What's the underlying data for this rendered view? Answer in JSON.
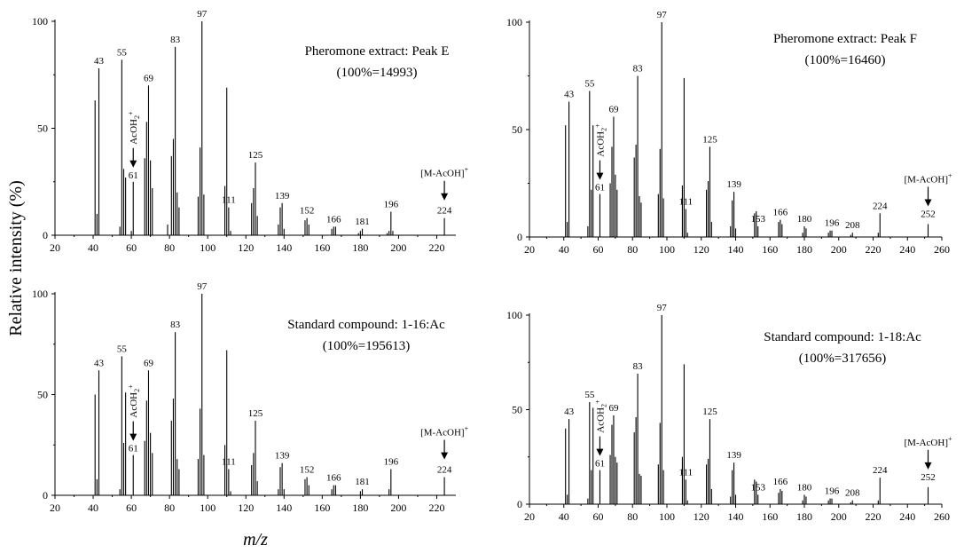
{
  "figure": {
    "ylabel": "Relative intensity (%)",
    "xlabel": "m/z"
  },
  "chart_data": [
    {
      "type": "bar",
      "title": "Pheromone extract: Peak E",
      "subtitle": "(100%=14993)",
      "xlim": [
        20,
        230
      ],
      "ylim": [
        0,
        100
      ],
      "xticks": [
        20,
        40,
        60,
        80,
        100,
        120,
        140,
        160,
        180,
        200,
        220
      ],
      "yticks": [
        0,
        50,
        100
      ],
      "x": [
        41,
        42,
        43,
        54,
        55,
        56,
        57,
        60,
        61,
        67,
        68,
        69,
        70,
        71,
        79,
        81,
        82,
        83,
        84,
        85,
        95,
        96,
        97,
        98,
        109,
        110,
        111,
        112,
        123,
        124,
        125,
        126,
        137,
        138,
        139,
        140,
        151,
        152,
        153,
        165,
        166,
        167,
        179,
        180,
        181,
        194,
        195,
        196,
        197,
        224
      ],
      "values": [
        63,
        10,
        78,
        4,
        82,
        31,
        27,
        2,
        25,
        36,
        53,
        70,
        35,
        22,
        5,
        37,
        45,
        88,
        20,
        13,
        18,
        41,
        100,
        19,
        23,
        69,
        13,
        2,
        15,
        22,
        34,
        9,
        5,
        13,
        15,
        3,
        7,
        8,
        5,
        3,
        4,
        4,
        1,
        2,
        3,
        1,
        2,
        11,
        2,
        8
      ],
      "peak_labels": [
        {
          "x": 43,
          "text": "43"
        },
        {
          "x": 55,
          "text": "55"
        },
        {
          "x": 69,
          "text": "69"
        },
        {
          "x": 83,
          "text": "83"
        },
        {
          "x": 97,
          "text": "97"
        },
        {
          "x": 111,
          "text": "111"
        },
        {
          "x": 125,
          "text": "125"
        },
        {
          "x": 139,
          "text": "139"
        },
        {
          "x": 152,
          "text": "152"
        },
        {
          "x": 166,
          "text": "166"
        },
        {
          "x": 181,
          "text": "181"
        },
        {
          "x": 196,
          "text": "196"
        },
        {
          "x": 224,
          "text": "224"
        }
      ],
      "arrows": [
        {
          "x": 61,
          "label": "AcOH2+",
          "value_label": "61"
        },
        {
          "x": 224,
          "label": "[M-AcOH]+",
          "value_label": ""
        }
      ]
    },
    {
      "type": "bar",
      "title": "Pheromone extract: Peak F",
      "subtitle": "(100%=16460)",
      "xlim": [
        20,
        260
      ],
      "ylim": [
        0,
        100
      ],
      "xticks": [
        20,
        40,
        60,
        80,
        100,
        120,
        140,
        160,
        180,
        200,
        220,
        240,
        260
      ],
      "yticks": [
        0,
        50,
        100
      ],
      "x": [
        41,
        42,
        43,
        54,
        55,
        56,
        57,
        61,
        67,
        68,
        69,
        70,
        71,
        81,
        82,
        83,
        84,
        85,
        95,
        96,
        97,
        98,
        109,
        110,
        111,
        112,
        123,
        124,
        125,
        126,
        137,
        138,
        139,
        140,
        151,
        152,
        153,
        165,
        166,
        167,
        179,
        180,
        181,
        194,
        195,
        196,
        207,
        208,
        223,
        224,
        252
      ],
      "values": [
        52,
        7,
        63,
        5,
        68,
        22,
        52,
        20,
        25,
        42,
        56,
        29,
        22,
        37,
        43,
        75,
        19,
        16,
        20,
        41,
        100,
        18,
        24,
        74,
        13,
        2,
        22,
        26,
        42,
        7,
        5,
        17,
        21,
        4,
        11,
        12,
        5,
        7,
        8,
        6,
        2,
        5,
        4,
        2,
        3,
        3,
        1,
        2,
        2,
        11,
        6
      ],
      "peak_labels": [
        {
          "x": 43,
          "text": "43"
        },
        {
          "x": 55,
          "text": "55"
        },
        {
          "x": 69,
          "text": "69"
        },
        {
          "x": 83,
          "text": "83"
        },
        {
          "x": 97,
          "text": "97"
        },
        {
          "x": 111,
          "text": "111"
        },
        {
          "x": 125,
          "text": "125"
        },
        {
          "x": 139,
          "text": "139"
        },
        {
          "x": 153,
          "text": "153"
        },
        {
          "x": 166,
          "text": "166"
        },
        {
          "x": 180,
          "text": "180"
        },
        {
          "x": 196,
          "text": "196"
        },
        {
          "x": 208,
          "text": "208"
        },
        {
          "x": 224,
          "text": "224"
        }
      ],
      "arrows": [
        {
          "x": 61,
          "label": "AcOH2+",
          "value_label": "61"
        },
        {
          "x": 252,
          "label": "[M-AcOH]+",
          "value_label": "252"
        }
      ]
    },
    {
      "type": "bar",
      "title": "Standard compound: 1-16:Ac",
      "subtitle": "(100%=195613)",
      "xlim": [
        20,
        230
      ],
      "ylim": [
        0,
        100
      ],
      "xticks": [
        20,
        40,
        60,
        80,
        100,
        120,
        140,
        160,
        180,
        200,
        220
      ],
      "yticks": [
        0,
        50,
        100
      ],
      "x": [
        41,
        42,
        43,
        54,
        55,
        56,
        57,
        61,
        67,
        68,
        69,
        70,
        71,
        81,
        82,
        83,
        84,
        85,
        95,
        96,
        97,
        98,
        109,
        110,
        111,
        112,
        123,
        124,
        125,
        126,
        137,
        138,
        139,
        140,
        151,
        152,
        153,
        165,
        166,
        167,
        180,
        181,
        195,
        196,
        224
      ],
      "values": [
        50,
        8,
        62,
        3,
        69,
        26,
        51,
        20,
        27,
        47,
        62,
        31,
        21,
        37,
        48,
        81,
        18,
        13,
        18,
        43,
        100,
        20,
        25,
        72,
        13,
        2,
        15,
        21,
        37,
        7,
        3,
        14,
        16,
        3,
        8,
        9,
        5,
        3,
        5,
        5,
        2,
        3,
        3,
        13,
        9
      ],
      "peak_labels": [
        {
          "x": 43,
          "text": "43"
        },
        {
          "x": 55,
          "text": "55"
        },
        {
          "x": 69,
          "text": "69"
        },
        {
          "x": 83,
          "text": "83"
        },
        {
          "x": 97,
          "text": "97"
        },
        {
          "x": 111,
          "text": "111"
        },
        {
          "x": 125,
          "text": "125"
        },
        {
          "x": 139,
          "text": "139"
        },
        {
          "x": 152,
          "text": "152"
        },
        {
          "x": 166,
          "text": "166"
        },
        {
          "x": 181,
          "text": "181"
        },
        {
          "x": 196,
          "text": "196"
        },
        {
          "x": 224,
          "text": "224"
        }
      ],
      "arrows": [
        {
          "x": 61,
          "label": "AcOH2+",
          "value_label": "61"
        },
        {
          "x": 224,
          "label": "[M-AcOH]+",
          "value_label": ""
        }
      ]
    },
    {
      "type": "bar",
      "title": "Standard compound: 1-18:Ac",
      "subtitle": "(100%=317656)",
      "xlim": [
        20,
        260
      ],
      "ylim": [
        0,
        100
      ],
      "xticks": [
        20,
        40,
        60,
        80,
        100,
        120,
        140,
        160,
        180,
        200,
        220,
        240,
        260
      ],
      "yticks": [
        0,
        50,
        100
      ],
      "x": [
        41,
        42,
        43,
        54,
        55,
        56,
        57,
        61,
        67,
        68,
        69,
        70,
        71,
        81,
        82,
        83,
        84,
        85,
        95,
        96,
        97,
        98,
        109,
        110,
        111,
        112,
        123,
        124,
        125,
        126,
        137,
        138,
        139,
        140,
        151,
        152,
        153,
        165,
        166,
        167,
        179,
        180,
        181,
        194,
        195,
        196,
        207,
        208,
        223,
        224,
        252
      ],
      "values": [
        40,
        5,
        45,
        3,
        54,
        18,
        51,
        18,
        26,
        42,
        47,
        25,
        22,
        38,
        46,
        69,
        16,
        15,
        21,
        43,
        100,
        18,
        25,
        74,
        13,
        2,
        21,
        24,
        45,
        8,
        4,
        18,
        22,
        5,
        13,
        12,
        5,
        6,
        8,
        7,
        2,
        5,
        4,
        2,
        3,
        3,
        1,
        2,
        2,
        14,
        9
      ],
      "peak_labels": [
        {
          "x": 43,
          "text": "43"
        },
        {
          "x": 55,
          "text": "55"
        },
        {
          "x": 69,
          "text": "69"
        },
        {
          "x": 83,
          "text": "83"
        },
        {
          "x": 97,
          "text": "97"
        },
        {
          "x": 111,
          "text": "111"
        },
        {
          "x": 125,
          "text": "125"
        },
        {
          "x": 139,
          "text": "139"
        },
        {
          "x": 153,
          "text": "153"
        },
        {
          "x": 166,
          "text": "166"
        },
        {
          "x": 180,
          "text": "180"
        },
        {
          "x": 196,
          "text": "196"
        },
        {
          "x": 208,
          "text": "208"
        },
        {
          "x": 224,
          "text": "224"
        }
      ],
      "arrows": [
        {
          "x": 61,
          "label": "AcOH2+",
          "value_label": "61"
        },
        {
          "x": 252,
          "label": "[M-AcOH]+",
          "value_label": "252"
        }
      ]
    }
  ]
}
